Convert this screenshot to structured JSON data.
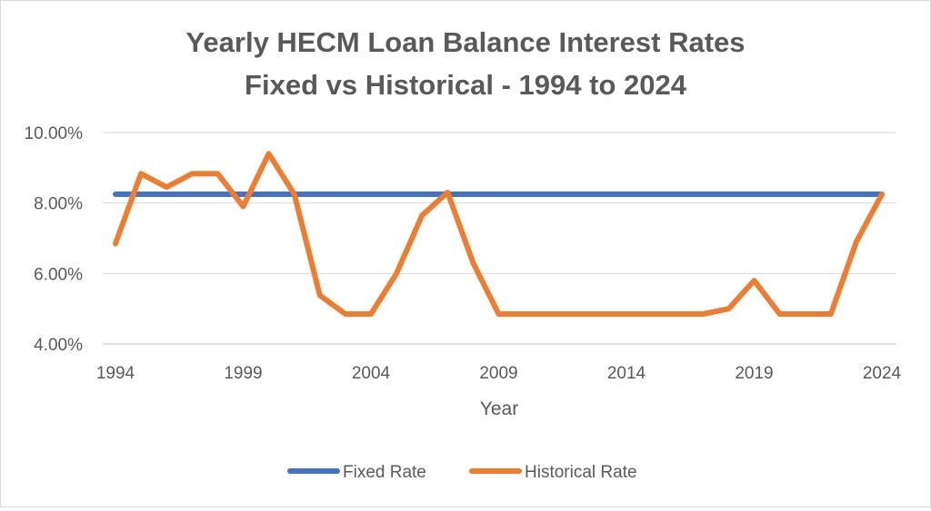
{
  "chart_data": {
    "type": "line",
    "title": "Yearly HECM Loan Balance Interest  Rates",
    "subtitle": "Fixed vs Historical - 1994 to 2024",
    "xlabel": "Year",
    "ylabel": "",
    "xlim": [
      1994,
      2024
    ],
    "ylim": [
      4.0,
      10.0
    ],
    "x_ticks": [
      "1994",
      "1999",
      "2004",
      "2009",
      "2014",
      "2019",
      "2024"
    ],
    "y_ticks": [
      "4.00%",
      "6.00%",
      "8.00%",
      "10.00%"
    ],
    "y_tick_values": [
      4.0,
      6.0,
      8.0,
      10.0
    ],
    "grid": "horizontal",
    "legend_position": "bottom",
    "x": [
      1994,
      1995,
      1996,
      1997,
      1998,
      1999,
      2000,
      2001,
      2002,
      2003,
      2004,
      2005,
      2006,
      2007,
      2008,
      2009,
      2010,
      2011,
      2012,
      2013,
      2014,
      2015,
      2016,
      2017,
      2018,
      2019,
      2020,
      2021,
      2022,
      2023,
      2024
    ],
    "series": [
      {
        "name": "Fixed  Rate",
        "color": "#4472C4",
        "values": [
          8.25,
          8.25,
          8.25,
          8.25,
          8.25,
          8.25,
          8.25,
          8.25,
          8.25,
          8.25,
          8.25,
          8.25,
          8.25,
          8.25,
          8.25,
          8.25,
          8.25,
          8.25,
          8.25,
          8.25,
          8.25,
          8.25,
          8.25,
          8.25,
          8.25,
          8.25,
          8.25,
          8.25,
          8.25,
          8.25,
          8.25
        ]
      },
      {
        "name": "Historical Rate",
        "color": "#ED7D31",
        "values": [
          6.85,
          8.83,
          8.45,
          8.83,
          8.83,
          7.9,
          9.4,
          8.25,
          5.38,
          4.85,
          4.85,
          6.0,
          7.65,
          8.3,
          6.3,
          4.85,
          4.85,
          4.85,
          4.85,
          4.85,
          4.85,
          4.85,
          4.85,
          4.85,
          5.0,
          5.8,
          4.85,
          4.85,
          4.85,
          6.9,
          8.25
        ]
      }
    ]
  }
}
